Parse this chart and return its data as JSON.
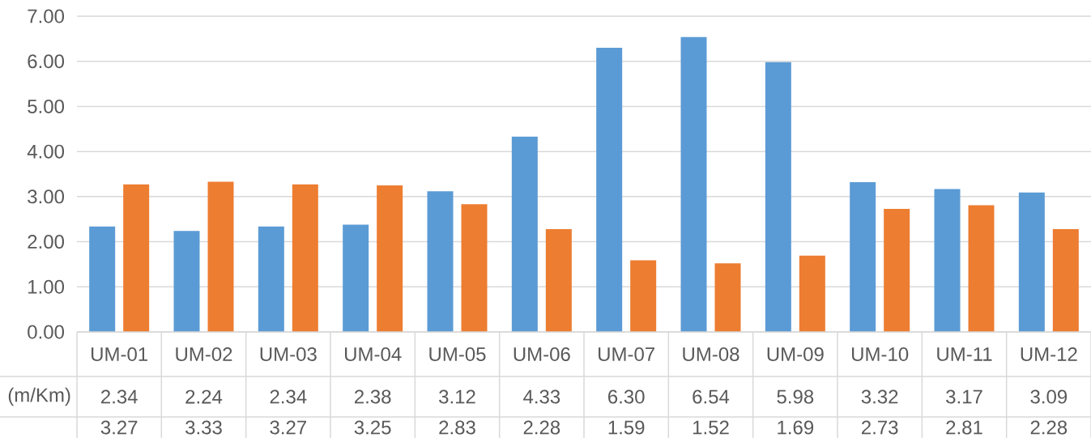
{
  "chart_data": {
    "type": "bar",
    "categories": [
      "UM-01",
      "UM-02",
      "UM-03",
      "UM-04",
      "UM-05",
      "UM-06",
      "UM-07",
      "UM-08",
      "UM-09",
      "UM-10",
      "UM-11",
      "UM-12"
    ],
    "series": [
      {
        "name": "(m/Km)",
        "color": "#5b9bd5",
        "values": [
          2.34,
          2.24,
          2.34,
          2.38,
          3.12,
          4.33,
          6.3,
          6.54,
          5.98,
          3.32,
          3.17,
          3.09
        ],
        "value_labels": [
          "2.34",
          "2.24",
          "2.34",
          "2.38",
          "3.12",
          "4.33",
          "6.30",
          "6.54",
          "5.98",
          "3.32",
          "3.17",
          "3.09"
        ]
      },
      {
        "color": "#ed7d31",
        "values": [
          3.27,
          3.33,
          3.27,
          3.25,
          2.83,
          2.28,
          1.59,
          1.52,
          1.69,
          2.73,
          2.81,
          2.28
        ],
        "value_labels": [
          "3.27",
          "3.33",
          "3.27",
          "3.25",
          "2.83",
          "2.28",
          "1.59",
          "1.52",
          "1.69",
          "2.73",
          "2.81",
          "2.28"
        ]
      }
    ],
    "ylim": [
      0,
      7
    ],
    "yticks": [
      {
        "value": 0,
        "label": "0.00"
      },
      {
        "value": 1,
        "label": "1.00"
      },
      {
        "value": 2,
        "label": "2.00"
      },
      {
        "value": 3,
        "label": "3.00"
      },
      {
        "value": 4,
        "label": "4.00"
      },
      {
        "value": 5,
        "label": "5.00"
      },
      {
        "value": 6,
        "label": "6.00"
      },
      {
        "value": 7,
        "label": "7.00"
      }
    ],
    "grid": "y"
  }
}
